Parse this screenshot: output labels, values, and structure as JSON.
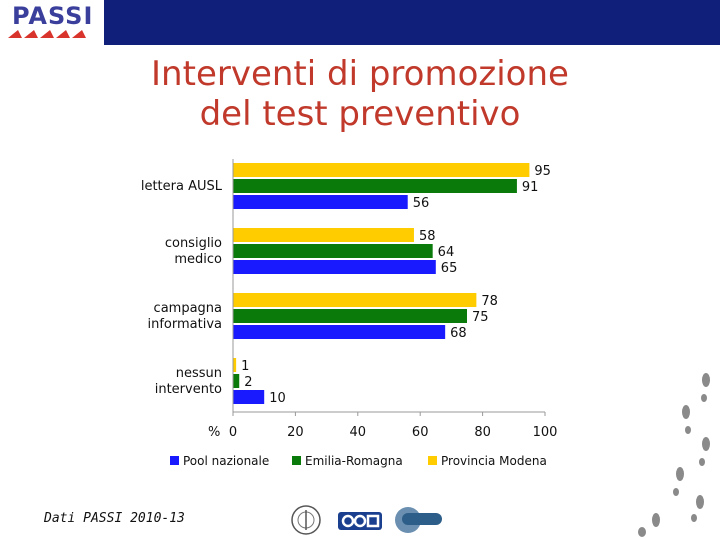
{
  "header": {
    "logo_text": "PASSI",
    "band_color": "#10207a"
  },
  "slide": {
    "title_line1": "Interventi di promozione",
    "title_line2": "del test preventivo",
    "title_color": "#c0392b"
  },
  "footer": {
    "note": "Dati PASSI 2010-13",
    "logos": [
      "seal-logo",
      "ccm-logo",
      "cnesps-logo"
    ]
  },
  "chart_data": {
    "type": "bar",
    "orientation": "horizontal",
    "categories": [
      [
        "lettera AUSL"
      ],
      [
        "consiglio",
        "medico"
      ],
      [
        "campagna",
        "informativa"
      ],
      [
        "nessun",
        "intervento"
      ]
    ],
    "series": [
      {
        "name": "Provincia Modena",
        "color": "#ffcc00",
        "values": [
          95,
          58,
          78,
          1
        ]
      },
      {
        "name": "Emilia-Romagna",
        "color": "#0a7a0a",
        "values": [
          91,
          64,
          75,
          2
        ]
      },
      {
        "name": "Pool nazionale",
        "color": "#1a1aff",
        "values": [
          56,
          65,
          68,
          10
        ]
      }
    ],
    "legend_order": [
      "Pool nazionale",
      "Emilia-Romagna",
      "Provincia Modena"
    ],
    "xlabel": "%",
    "xlim": [
      0,
      100
    ],
    "xticks": [
      0,
      20,
      40,
      60,
      80,
      100
    ],
    "grid": false,
    "legend_position": "bottom"
  }
}
